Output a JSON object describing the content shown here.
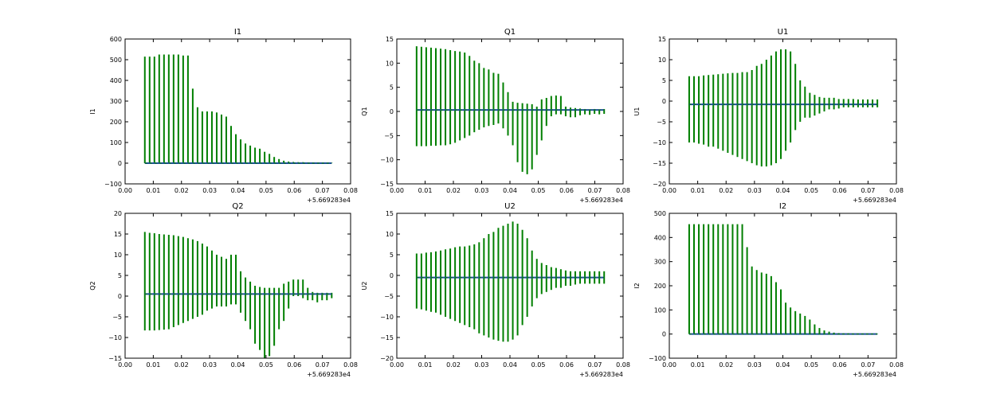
{
  "colors": {
    "errorbar": "#007f00",
    "baseline": "#1f4e9a",
    "frame": "#000000"
  },
  "chart_data": [
    {
      "type": "errorbar",
      "title": "I1",
      "ylabel": "I1",
      "xlim": [
        0.0,
        0.08
      ],
      "ylim": [
        -100,
        600
      ],
      "xticks": [
        "0.00",
        "0.01",
        "0.02",
        "0.03",
        "0.04",
        "0.05",
        "0.06",
        "0.07",
        "0.08"
      ],
      "yticks": [
        "−100",
        "0",
        "100",
        "200",
        "300",
        "400",
        "500",
        "600"
      ],
      "x_offset_label": "+5.669283e4",
      "x_start": 0.007,
      "x_step": 0.0017,
      "baseline": 0,
      "upper": [
        515,
        515,
        515,
        525,
        525,
        525,
        525,
        525,
        520,
        520,
        360,
        270,
        250,
        250,
        250,
        245,
        235,
        225,
        180,
        140,
        115,
        95,
        85,
        75,
        70,
        55,
        45,
        30,
        20,
        12,
        8,
        6,
        5,
        5,
        4,
        4,
        3,
        3,
        3,
        2
      ],
      "lower": [
        0,
        0,
        0,
        0,
        0,
        0,
        0,
        0,
        0,
        0,
        0,
        0,
        0,
        0,
        0,
        0,
        0,
        0,
        0,
        0,
        0,
        0,
        0,
        0,
        0,
        0,
        0,
        0,
        0,
        0,
        0,
        0,
        0,
        0,
        0,
        0,
        0,
        0,
        0,
        0
      ]
    },
    {
      "type": "errorbar",
      "title": "Q1",
      "ylabel": "Q1",
      "xlim": [
        0.0,
        0.08
      ],
      "ylim": [
        -15,
        15
      ],
      "xticks": [
        "0.00",
        "0.01",
        "0.02",
        "0.03",
        "0.04",
        "0.05",
        "0.06",
        "0.07",
        "0.08"
      ],
      "yticks": [
        "−15",
        "−10",
        "−5",
        "0",
        "5",
        "10",
        "15"
      ],
      "x_offset_label": "+5.669283e4",
      "x_start": 0.007,
      "x_step": 0.0017,
      "baseline": 0.3,
      "upper": [
        13.5,
        13.4,
        13.3,
        13.2,
        13.1,
        13,
        12.9,
        12.7,
        12.5,
        12.4,
        12.2,
        11.5,
        10.5,
        10,
        9,
        8.7,
        8,
        7.8,
        6,
        4,
        2,
        1.8,
        1.7,
        1.6,
        1.5,
        1,
        2.5,
        2.8,
        3.2,
        3.3,
        3.2,
        1,
        0.8,
        0.7,
        0.6,
        0.5,
        0.4,
        0.5,
        0.4,
        0.5
      ],
      "lower": [
        -7.2,
        -7.2,
        -7.2,
        -7.1,
        -7.1,
        -7,
        -7,
        -6.8,
        -6.5,
        -6,
        -5.5,
        -5,
        -4.3,
        -3.8,
        -3.3,
        -3,
        -2.8,
        -2.5,
        -3.5,
        -5,
        -7,
        -10.5,
        -12.5,
        -13,
        -12,
        -9,
        -6,
        -3,
        -1,
        -0.6,
        -0.6,
        -1,
        -1.2,
        -1.2,
        -0.8,
        -0.6,
        -0.7,
        -0.5,
        -0.6,
        -0.5
      ]
    },
    {
      "type": "errorbar",
      "title": "U1",
      "ylabel": "U1",
      "xlim": [
        0.0,
        0.08
      ],
      "ylim": [
        -20,
        15
      ],
      "xticks": [
        "0.00",
        "0.01",
        "0.02",
        "0.03",
        "0.04",
        "0.05",
        "0.06",
        "0.07",
        "0.08"
      ],
      "yticks": [
        "−20",
        "−15",
        "−10",
        "−5",
        "0",
        "5",
        "10",
        "15"
      ],
      "x_offset_label": "+5.669283e4",
      "x_start": 0.007,
      "x_step": 0.0017,
      "baseline": -0.8,
      "upper": [
        6,
        6,
        6,
        6.2,
        6.3,
        6.4,
        6.5,
        6.6,
        6.7,
        6.8,
        6.8,
        7,
        7,
        7.5,
        8.5,
        9,
        10,
        11,
        12,
        12.5,
        12.5,
        12,
        9,
        5,
        3.5,
        2,
        1.5,
        1,
        0.8,
        0.8,
        0.8,
        0.5,
        0.5,
        0.5,
        0.5,
        0.4,
        0.4,
        0.4,
        0.4,
        0.4
      ],
      "lower": [
        -10,
        -10,
        -10.3,
        -10.5,
        -11,
        -11,
        -11.5,
        -12,
        -12.5,
        -13,
        -13.5,
        -14,
        -14.5,
        -15,
        -15.5,
        -15.8,
        -15.8,
        -15.5,
        -15,
        -14,
        -12,
        -10,
        -7,
        -5,
        -4,
        -4,
        -3.5,
        -3,
        -2.5,
        -2,
        -2,
        -1.8,
        -1.5,
        -1.5,
        -1.5,
        -1.5,
        -1.5,
        -1.5,
        -1.5,
        -1.5
      ]
    },
    {
      "type": "errorbar",
      "title": "Q2",
      "ylabel": "Q2",
      "xlim": [
        0.0,
        0.08
      ],
      "ylim": [
        -15,
        20
      ],
      "xticks": [
        "0.00",
        "0.01",
        "0.02",
        "0.03",
        "0.04",
        "0.05",
        "0.06",
        "0.07",
        "0.08"
      ],
      "yticks": [
        "−15",
        "−10",
        "−5",
        "0",
        "5",
        "10",
        "15",
        "20"
      ],
      "x_offset_label": "+5.669283e4",
      "x_start": 0.007,
      "x_step": 0.0017,
      "baseline": 0.5,
      "upper": [
        15.5,
        15.3,
        15.2,
        15,
        14.9,
        14.8,
        14.7,
        14.5,
        14.3,
        14,
        13.7,
        13.3,
        12.7,
        12,
        11,
        10,
        9.5,
        9,
        10,
        10,
        6,
        4.5,
        3.5,
        2.5,
        2.2,
        2,
        2,
        2,
        2,
        3,
        3.5,
        4,
        4,
        4,
        2,
        1,
        0.8,
        0.8,
        0.8,
        0.8
      ],
      "lower": [
        -8.3,
        -8.3,
        -8.3,
        -8.2,
        -8.1,
        -8,
        -7.5,
        -7,
        -6.5,
        -6,
        -5.5,
        -5,
        -4.5,
        -3.5,
        -3,
        -2.5,
        -2.5,
        -2.5,
        -2,
        -2,
        -4,
        -6,
        -8,
        -11.5,
        -13,
        -15,
        -14.5,
        -12,
        -8,
        -6,
        -3,
        0,
        0,
        -0.5,
        -1,
        -1,
        -1.5,
        -1,
        -1,
        -0.5
      ]
    },
    {
      "type": "errorbar",
      "title": "U2",
      "ylabel": "U2",
      "xlim": [
        0.0,
        0.08
      ],
      "ylim": [
        -20,
        15
      ],
      "xticks": [
        "0.00",
        "0.01",
        "0.02",
        "0.03",
        "0.04",
        "0.05",
        "0.06",
        "0.07",
        "0.08"
      ],
      "yticks": [
        "−20",
        "−15",
        "−10",
        "−5",
        "0",
        "5",
        "10",
        "15"
      ],
      "x_offset_label": "+5.669283e4",
      "x_start": 0.007,
      "x_step": 0.0017,
      "baseline": -0.5,
      "upper": [
        5.3,
        5.3,
        5.5,
        5.6,
        5.8,
        6,
        6.3,
        6.5,
        6.8,
        7,
        7,
        7.2,
        7.5,
        8,
        9,
        10,
        10.5,
        11.5,
        12,
        12.5,
        13,
        12.5,
        11,
        9,
        6,
        4,
        3,
        2.5,
        2,
        1.8,
        1.5,
        1.2,
        1,
        1,
        1,
        1,
        1,
        1,
        1,
        1
      ],
      "lower": [
        -8,
        -8.2,
        -8.5,
        -8.8,
        -9,
        -9.5,
        -10,
        -10.5,
        -11,
        -11.5,
        -12,
        -12.5,
        -13,
        -14,
        -14.5,
        -15,
        -15.5,
        -15.8,
        -16,
        -16,
        -15.5,
        -14.5,
        -12,
        -10,
        -7.5,
        -5.5,
        -4.5,
        -4,
        -3.5,
        -3,
        -3,
        -2.5,
        -2.5,
        -2.2,
        -2,
        -2,
        -2,
        -2,
        -2,
        -2
      ]
    },
    {
      "type": "errorbar",
      "title": "I2",
      "ylabel": "I2",
      "xlim": [
        0.0,
        0.08
      ],
      "ylim": [
        -100,
        500
      ],
      "xticks": [
        "0.00",
        "0.01",
        "0.02",
        "0.03",
        "0.04",
        "0.05",
        "0.06",
        "0.07",
        "0.08"
      ],
      "yticks": [
        "−100",
        "0",
        "100",
        "200",
        "300",
        "400",
        "500"
      ],
      "x_offset_label": "+5.669283e4",
      "x_start": 0.007,
      "x_step": 0.0017,
      "baseline": 0,
      "upper": [
        455,
        455,
        455,
        455,
        455,
        455,
        455,
        455,
        455,
        455,
        455,
        455,
        360,
        280,
        265,
        255,
        250,
        240,
        215,
        185,
        130,
        110,
        95,
        85,
        75,
        60,
        40,
        25,
        15,
        10,
        6,
        4,
        3,
        3,
        2,
        2,
        2,
        2,
        1,
        1
      ],
      "lower": [
        0,
        0,
        0,
        0,
        0,
        0,
        0,
        0,
        0,
        0,
        0,
        0,
        0,
        0,
        0,
        0,
        0,
        0,
        0,
        0,
        0,
        0,
        0,
        0,
        0,
        0,
        0,
        0,
        0,
        0,
        0,
        0,
        0,
        0,
        0,
        0,
        0,
        0,
        0,
        0
      ]
    }
  ]
}
